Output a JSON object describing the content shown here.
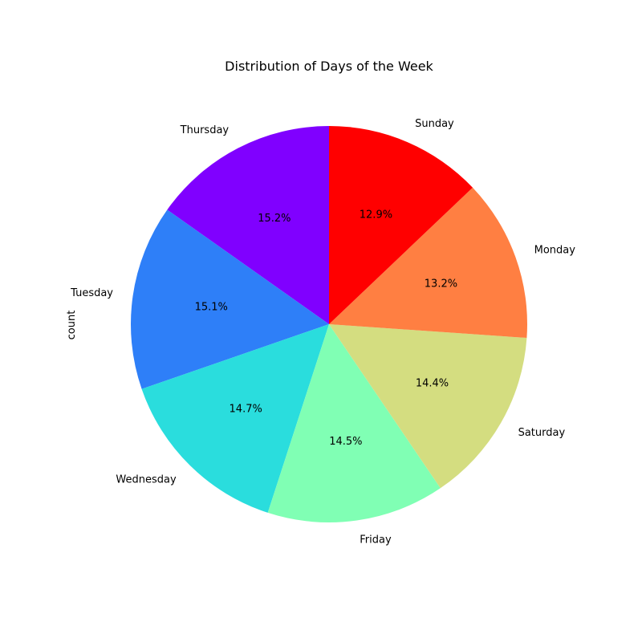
{
  "chart_data": {
    "type": "pie",
    "title": "Distribution of Days of the Week",
    "ylabel": "count",
    "slices": [
      {
        "label": "Thursday",
        "pct_label": "15.2%",
        "value": 15.2,
        "color": "#8000ff"
      },
      {
        "label": "Tuesday",
        "pct_label": "15.1%",
        "value": 15.1,
        "color": "#2e7ff8"
      },
      {
        "label": "Wednesday",
        "pct_label": "14.7%",
        "value": 14.7,
        "color": "#2adddd"
      },
      {
        "label": "Friday",
        "pct_label": "14.5%",
        "value": 14.5,
        "color": "#80ffb4"
      },
      {
        "label": "Saturday",
        "pct_label": "14.4%",
        "value": 14.4,
        "color": "#d4dd80"
      },
      {
        "label": "Monday",
        "pct_label": "13.2%",
        "value": 13.2,
        "color": "#ff7f42"
      },
      {
        "label": "Sunday",
        "pct_label": "12.9%",
        "value": 12.9,
        "color": "#ff0000"
      }
    ],
    "start_angle_deg": 90,
    "direction": "counterclockwise",
    "legend": "none"
  }
}
